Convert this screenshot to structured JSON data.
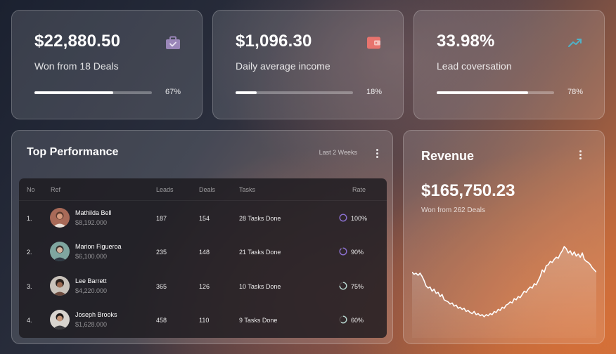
{
  "stats": [
    {
      "value": "$22,880.50",
      "label": "Won from 18 Deals",
      "progress": 0.67,
      "pct": "67%",
      "icon": "briefcase-icon",
      "icon_color": "#9a86b8"
    },
    {
      "value": "$1,096.30",
      "label": "Daily average income",
      "progress": 0.18,
      "pct": "18%",
      "icon": "wallet-icon",
      "icon_color": "#e8746e"
    },
    {
      "value": "33.98%",
      "label": "Lead coversation",
      "progress": 0.78,
      "pct": "78%",
      "icon": "trending-up-icon",
      "icon_color": "#4fb2c8"
    }
  ],
  "performance": {
    "title": "Top Performance",
    "period": "Last 2 Weeks",
    "headers": {
      "no": "No",
      "ref": "Ref",
      "leads": "Leads",
      "deals": "Deals",
      "tasks": "Tasks",
      "rate": "Rate"
    },
    "rows": [
      {
        "no": "1.",
        "name": "Mathilda Bell",
        "amount": "$8,192.000",
        "leads": "187",
        "deals": "154",
        "tasks": "28 Tasks Done",
        "rate": "100%",
        "rate_value": 1.0,
        "ring_color": "#8a6fd0"
      },
      {
        "no": "2.",
        "name": "Marion Figueroa",
        "amount": "$6,100.000",
        "leads": "235",
        "deals": "148",
        "tasks": "21 Tasks Done",
        "rate": "90%",
        "rate_value": 0.9,
        "ring_color": "#8a6fd0"
      },
      {
        "no": "3.",
        "name": "Lee Barrett",
        "amount": "$4,220.000",
        "leads": "365",
        "deals": "126",
        "tasks": "10 Tasks Done",
        "rate": "75%",
        "rate_value": 0.75,
        "ring_color": "#b8d8d0"
      },
      {
        "no": "4.",
        "name": "Joseph Brooks",
        "amount": "$1,628.000",
        "leads": "458",
        "deals": "110",
        "tasks": "9 Tasks Done",
        "rate": "60%",
        "rate_value": 0.6,
        "ring_color": "#b8d8d0"
      }
    ]
  },
  "revenue": {
    "title": "Revenue",
    "value": "$165,750.23",
    "subtitle": "Won from 262 Deals"
  },
  "chart_data": {
    "type": "area",
    "values": [
      48,
      46,
      47,
      45,
      47,
      44,
      40,
      35,
      33,
      34,
      30,
      32,
      28,
      29,
      25,
      27,
      22,
      21,
      20,
      18,
      19,
      16,
      17,
      14,
      15,
      13,
      14,
      11,
      12,
      10,
      9,
      11,
      8,
      9,
      7,
      8,
      6,
      8,
      7,
      9,
      8,
      11,
      10,
      13,
      12,
      15,
      14,
      17,
      18,
      20,
      19,
      23,
      22,
      25,
      24,
      27,
      30,
      29,
      32,
      34,
      33,
      37,
      36,
      40,
      44,
      50,
      48,
      54,
      55,
      58,
      57,
      60,
      62,
      61,
      65,
      68,
      72,
      70,
      66,
      68,
      64,
      67,
      63,
      65,
      62,
      66,
      60,
      58,
      57,
      55,
      52,
      50,
      48
    ],
    "grid": false
  }
}
